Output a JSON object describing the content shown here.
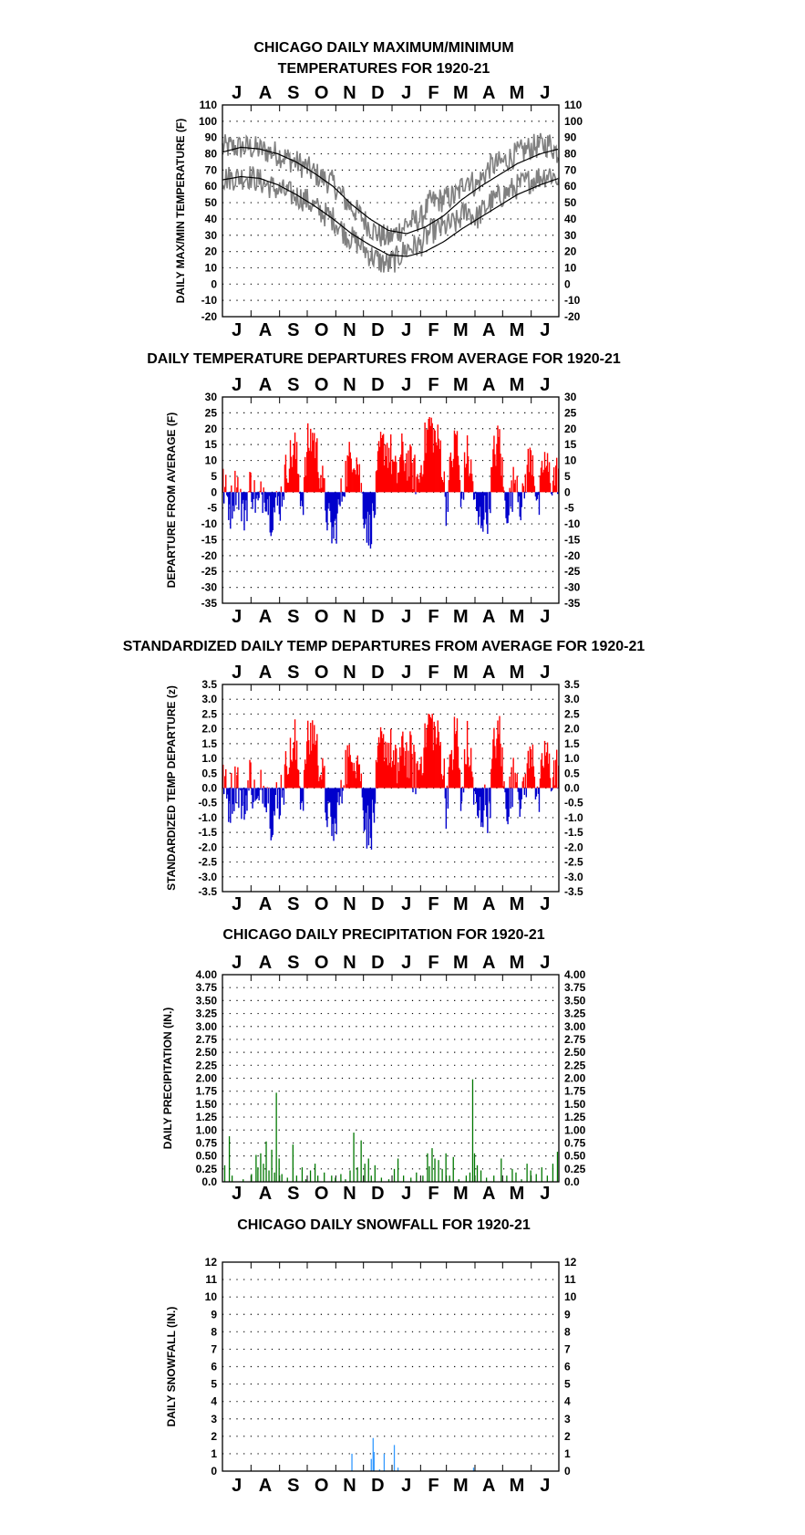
{
  "months": [
    "J",
    "A",
    "S",
    "O",
    "N",
    "D",
    "J",
    "F",
    "M",
    "A",
    "M",
    "J"
  ],
  "chart_data": [
    {
      "id": "temps",
      "type": "line",
      "title_lines": [
        "CHICAGO DAILY MAXIMUM/MINIMUM",
        "TEMPERATURES FOR 1920-21"
      ],
      "ylabel": "DAILY MAX/MIN TEMPERATURE (F)",
      "ylim": [
        -20,
        110
      ],
      "yticks": [
        110,
        100,
        90,
        80,
        70,
        60,
        50,
        40,
        30,
        20,
        10,
        0,
        -10,
        -20
      ],
      "grid": true,
      "months_top": true,
      "months_bottom": true,
      "colors": {
        "daily": "#808080",
        "normal": "#000000"
      },
      "series": [
        {
          "role": "daily_max",
          "knots": [
            [
              0,
              84
            ],
            [
              30,
              84
            ],
            [
              45,
              82
            ],
            [
              60,
              80
            ],
            [
              75,
              76
            ],
            [
              90,
              72
            ],
            [
              105,
              66
            ],
            [
              120,
              62
            ],
            [
              135,
              50
            ],
            [
              150,
              42
            ],
            [
              160,
              35
            ],
            [
              170,
              30
            ],
            [
              180,
              28
            ],
            [
              190,
              32
            ],
            [
              200,
              37
            ],
            [
              215,
              40
            ],
            [
              225,
              50
            ],
            [
              240,
              52
            ],
            [
              255,
              55
            ],
            [
              265,
              66
            ],
            [
              275,
              60
            ],
            [
              290,
              72
            ],
            [
              305,
              75
            ],
            [
              320,
              80
            ],
            [
              335,
              84
            ],
            [
              355,
              86
            ],
            [
              365,
              80
            ]
          ],
          "noise": 8
        },
        {
          "role": "daily_min",
          "knots": [
            [
              0,
              65
            ],
            [
              30,
              66
            ],
            [
              45,
              62
            ],
            [
              60,
              58
            ],
            [
              75,
              55
            ],
            [
              90,
              52
            ],
            [
              105,
              45
            ],
            [
              120,
              40
            ],
            [
              135,
              30
            ],
            [
              150,
              24
            ],
            [
              160,
              18
            ],
            [
              170,
              14
            ],
            [
              180,
              12
            ],
            [
              190,
              16
            ],
            [
              200,
              22
            ],
            [
              215,
              24
            ],
            [
              225,
              32
            ],
            [
              240,
              35
            ],
            [
              255,
              38
            ],
            [
              265,
              46
            ],
            [
              275,
              40
            ],
            [
              290,
              50
            ],
            [
              305,
              55
            ],
            [
              320,
              60
            ],
            [
              335,
              64
            ],
            [
              355,
              68
            ],
            [
              365,
              64
            ]
          ],
          "noise": 8
        },
        {
          "role": "normal_max",
          "knots": [
            [
              0,
              81
            ],
            [
              20,
              84
            ],
            [
              40,
              83
            ],
            [
              60,
              80
            ],
            [
              80,
              75
            ],
            [
              100,
              68
            ],
            [
              120,
              60
            ],
            [
              140,
              49
            ],
            [
              160,
              40
            ],
            [
              180,
              33
            ],
            [
              200,
              31
            ],
            [
              220,
              35
            ],
            [
              240,
              42
            ],
            [
              260,
              52
            ],
            [
              280,
              60
            ],
            [
              300,
              67
            ],
            [
              320,
              74
            ],
            [
              345,
              80
            ],
            [
              365,
              83
            ]
          ]
        },
        {
          "role": "normal_min",
          "knots": [
            [
              0,
              64
            ],
            [
              20,
              66
            ],
            [
              40,
              65
            ],
            [
              60,
              61
            ],
            [
              80,
              55
            ],
            [
              100,
              48
            ],
            [
              120,
              40
            ],
            [
              140,
              31
            ],
            [
              160,
              24
            ],
            [
              180,
              18
            ],
            [
              200,
              17
            ],
            [
              220,
              20
            ],
            [
              240,
              26
            ],
            [
              260,
              34
            ],
            [
              280,
              41
            ],
            [
              300,
              48
            ],
            [
              320,
              55
            ],
            [
              345,
              61
            ],
            [
              365,
              65
            ]
          ]
        }
      ]
    },
    {
      "id": "departures",
      "type": "area",
      "title_lines": [
        "DAILY TEMPERATURE DEPARTURES FROM AVERAGE FOR 1920-21"
      ],
      "ylabel": "DEPARTURE FROM AVERAGE (F)",
      "ylim": [
        -35,
        30
      ],
      "yticks": [
        30,
        25,
        20,
        15,
        10,
        5,
        0,
        -5,
        -10,
        -15,
        -20,
        -25,
        -30,
        -35
      ],
      "grid": true,
      "months_top": true,
      "months_bottom": true,
      "colors": {
        "positive": "#ff0000",
        "negative": "#0000cc"
      },
      "knots": [
        [
          0,
          2
        ],
        [
          8,
          -5
        ],
        [
          15,
          4
        ],
        [
          22,
          -8
        ],
        [
          30,
          3
        ],
        [
          38,
          -5
        ],
        [
          45,
          2
        ],
        [
          52,
          -7
        ],
        [
          62,
          -3
        ],
        [
          70,
          9
        ],
        [
          78,
          14
        ],
        [
          86,
          -4
        ],
        [
          92,
          15
        ],
        [
          98,
          18
        ],
        [
          106,
          6
        ],
        [
          114,
          -9
        ],
        [
          120,
          -14
        ],
        [
          126,
          -5
        ],
        [
          132,
          5
        ],
        [
          140,
          13
        ],
        [
          146,
          10
        ],
        [
          152,
          -4
        ],
        [
          158,
          -13
        ],
        [
          164,
          -7
        ],
        [
          170,
          13
        ],
        [
          176,
          15
        ],
        [
          182,
          12
        ],
        [
          188,
          4
        ],
        [
          194,
          12
        ],
        [
          200,
          10
        ],
        [
          206,
          7
        ],
        [
          212,
          3
        ],
        [
          218,
          14
        ],
        [
          224,
          22
        ],
        [
          230,
          17
        ],
        [
          236,
          14
        ],
        [
          242,
          -4
        ],
        [
          248,
          10
        ],
        [
          254,
          19
        ],
        [
          258,
          -6
        ],
        [
          264,
          13
        ],
        [
          270,
          5
        ],
        [
          276,
          -10
        ],
        [
          282,
          -7
        ],
        [
          288,
          -6
        ],
        [
          294,
          12
        ],
        [
          300,
          17
        ],
        [
          306,
          -5
        ],
        [
          312,
          -3
        ],
        [
          318,
          7
        ],
        [
          324,
          -6
        ],
        [
          330,
          8
        ],
        [
          336,
          12
        ],
        [
          342,
          -7
        ],
        [
          348,
          10
        ],
        [
          356,
          4
        ],
        [
          364,
          6
        ]
      ],
      "noise": 7
    },
    {
      "id": "standardized",
      "type": "area",
      "title_lines": [
        "STANDARDIZED DAILY TEMP DEPARTURES FROM AVERAGE FOR 1920-21"
      ],
      "ylabel": "STANDARDIZED TEMP DEPARTURE (z)",
      "ylim": [
        -3.5,
        3.5
      ],
      "yticks": [
        "3.5",
        "3.0",
        "2.5",
        "2.0",
        "1.5",
        "1.0",
        "0.5",
        "0.0",
        "-0.5",
        "-1.0",
        "-1.5",
        "-2.0",
        "-2.5",
        "-3.0",
        "-3.5"
      ],
      "grid": true,
      "months_top": true,
      "months_bottom": true,
      "colors": {
        "positive": "#ff0000",
        "negative": "#0000cc"
      },
      "scale_from": "departures",
      "scale_factor": 0.11,
      "noise": 0.6
    },
    {
      "id": "precip",
      "type": "bar",
      "title_lines": [
        "CHICAGO DAILY PRECIPITATION FOR 1920-21"
      ],
      "ylabel": "DAILY PRECIPITATION (IN.)",
      "ylim": [
        0,
        4
      ],
      "yticks": [
        "4.00",
        "3.75",
        "3.50",
        "3.25",
        "3.00",
        "2.75",
        "2.50",
        "2.25",
        "2.00",
        "1.75",
        "1.50",
        "1.25",
        "1.00",
        "0.75",
        "0.50",
        "0.25",
        "0.0"
      ],
      "grid": true,
      "months_top": true,
      "months_bottom": true,
      "colors": {
        "bars": "#007700"
      },
      "days": [
        [
          2,
          0.32
        ],
        [
          7,
          0.88
        ],
        [
          10,
          0.12
        ],
        [
          22,
          0.05
        ],
        [
          31,
          0.15
        ],
        [
          36,
          0.52
        ],
        [
          38,
          0.28
        ],
        [
          41,
          0.55
        ],
        [
          44,
          0.35
        ],
        [
          47,
          0.78
        ],
        [
          50,
          0.22
        ],
        [
          53,
          0.62
        ],
        [
          56,
          0.18
        ],
        [
          58,
          1.72
        ],
        [
          61,
          0.45
        ],
        [
          64,
          0.15
        ],
        [
          70,
          0.08
        ],
        [
          76,
          0.72
        ],
        [
          80,
          0.12
        ],
        [
          86,
          0.28
        ],
        [
          90,
          0.05
        ],
        [
          95,
          0.22
        ],
        [
          100,
          0.35
        ],
        [
          103,
          0.12
        ],
        [
          110,
          0.18
        ],
        [
          118,
          0.12
        ],
        [
          122,
          0.08
        ],
        [
          128,
          0.15
        ],
        [
          133,
          0.05
        ],
        [
          138,
          0.22
        ],
        [
          142,
          0.95
        ],
        [
          146,
          0.28
        ],
        [
          150,
          0.8
        ],
        [
          154,
          0.35
        ],
        [
          158,
          0.45
        ],
        [
          161,
          0.12
        ],
        [
          165,
          0.32
        ],
        [
          172,
          0.08
        ],
        [
          180,
          0.05
        ],
        [
          186,
          0.25
        ],
        [
          190,
          0.45
        ],
        [
          196,
          0.12
        ],
        [
          204,
          0.08
        ],
        [
          210,
          0.18
        ],
        [
          217,
          0.12
        ],
        [
          222,
          0.55
        ],
        [
          224,
          0.3
        ],
        [
          227,
          0.65
        ],
        [
          230,
          0.45
        ],
        [
          234,
          0.42
        ],
        [
          238,
          0.25
        ],
        [
          242,
          0.55
        ],
        [
          246,
          0.12
        ],
        [
          250,
          0.48
        ],
        [
          256,
          0.05
        ],
        [
          264,
          0.12
        ],
        [
          268,
          0.18
        ],
        [
          271,
          1.98
        ],
        [
          273,
          0.55
        ],
        [
          276,
          0.32
        ],
        [
          280,
          0.22
        ],
        [
          286,
          0.08
        ],
        [
          294,
          0.12
        ],
        [
          302,
          0.45
        ],
        [
          308,
          0.12
        ],
        [
          314,
          0.25
        ],
        [
          318,
          0.18
        ],
        [
          324,
          0.05
        ],
        [
          330,
          0.35
        ],
        [
          334,
          0.22
        ],
        [
          340,
          0.15
        ],
        [
          346,
          0.28
        ],
        [
          352,
          0.12
        ],
        [
          358,
          0.35
        ],
        [
          363,
          0.58
        ]
      ]
    },
    {
      "id": "snow",
      "type": "bar",
      "title_lines": [
        "CHICAGO DAILY SNOWFALL FOR 1920-21"
      ],
      "ylabel": "DAILY SNOWFALL (IN.)",
      "ylim": [
        0,
        12
      ],
      "yticks": [
        12,
        11,
        10,
        9,
        8,
        7,
        6,
        5,
        4,
        3,
        2,
        1,
        0
      ],
      "grid": true,
      "months_top": false,
      "months_bottom": true,
      "colors": {
        "bars": "#3399ff"
      },
      "days": [
        [
          140,
          1.0
        ],
        [
          161,
          0.7
        ],
        [
          163,
          1.9
        ],
        [
          164,
          1.1
        ],
        [
          170,
          0.1
        ],
        [
          175,
          1.0
        ],
        [
          186,
          1.5
        ],
        [
          190,
          0.2
        ],
        [
          272,
          0.2
        ]
      ]
    }
  ]
}
